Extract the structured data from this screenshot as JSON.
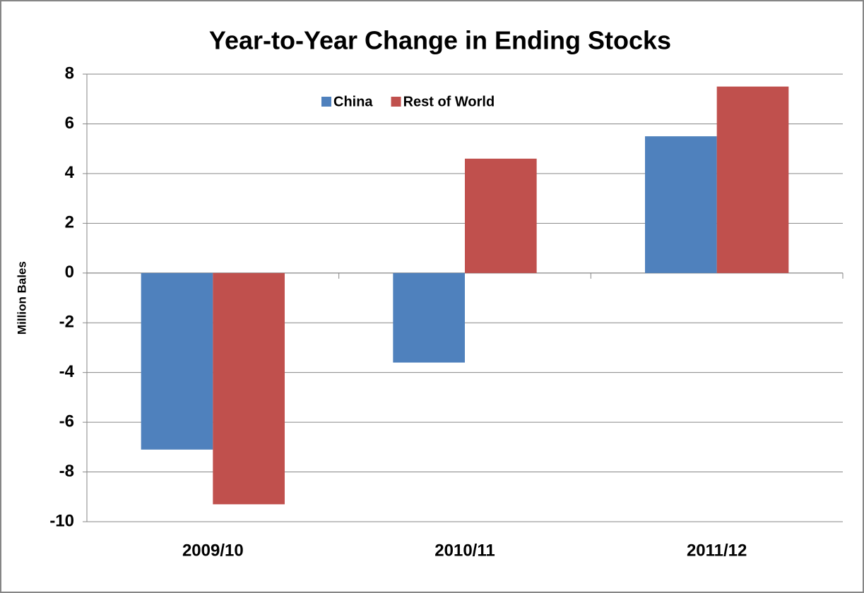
{
  "chart_data": {
    "type": "bar",
    "title": "Year-to-Year Change in Ending Stocks",
    "y_label": "Million Bales",
    "categories": [
      "2009/10",
      "2010/11",
      "2011/12"
    ],
    "series": [
      {
        "name": "China",
        "color": "#4f81bd",
        "values": [
          -7.1,
          -3.6,
          5.5
        ]
      },
      {
        "name": "Rest of World",
        "color": "#c0504d",
        "values": [
          -9.3,
          4.6,
          7.5
        ]
      }
    ],
    "ylim": [
      -10,
      8
    ],
    "yticks": [
      -10,
      -8,
      -6,
      -4,
      -2,
      0,
      2,
      4,
      6,
      8
    ],
    "grid": true,
    "legend": "top"
  }
}
